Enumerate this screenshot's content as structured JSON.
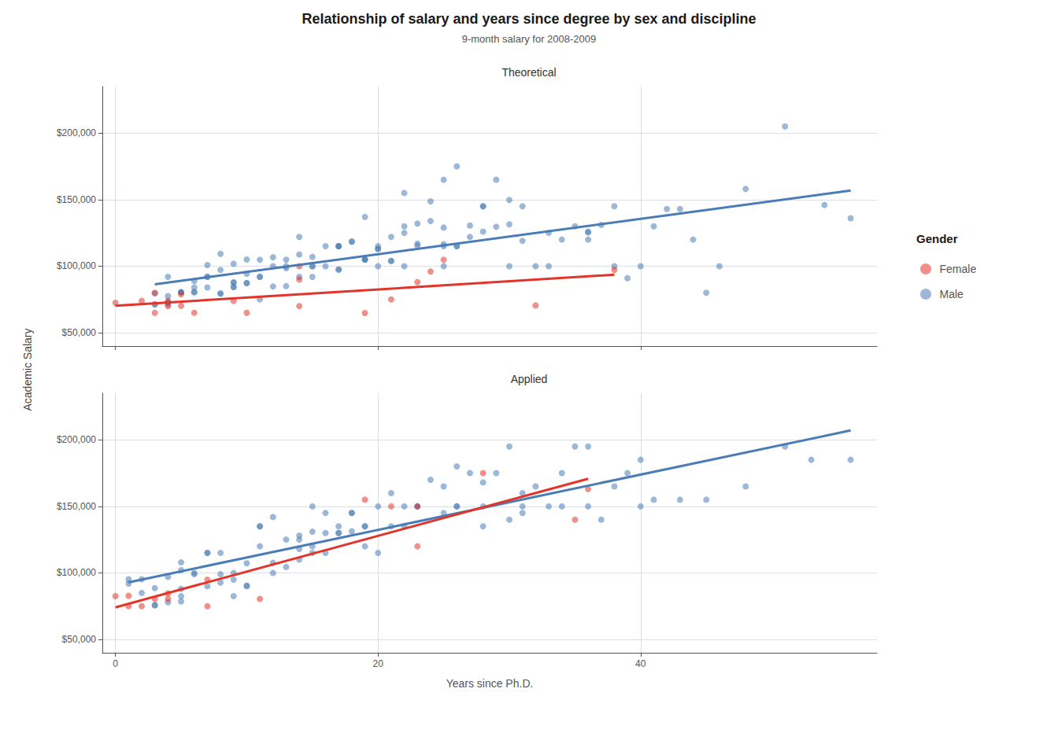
{
  "title": "Relationship of salary and years since degree by sex and discipline",
  "subtitle": "9-month salary for 2008-2009",
  "ylabel": "Academic Salary",
  "legend": "right",
  "annotations": [
    "Gender"
  ],
  "chart_data": [
    {
      "type": "scatter",
      "title": "Theoretical",
      "xlim": [
        -1,
        58
      ],
      "ylim": [
        40000,
        235000
      ],
      "xticks": [
        0,
        20,
        40
      ],
      "yticks": [
        {
          "value": 50000,
          "label": "$50,000"
        },
        {
          "value": 100000,
          "label": "$100,000"
        },
        {
          "value": 150000,
          "label": "$150,000"
        },
        {
          "value": 200000,
          "label": "$200,000"
        }
      ],
      "grid": true,
      "tick_labels": "y",
      "series": [
        {
          "name": "Male",
          "type": "scatter",
          "color": "#4A7DB5",
          "x": [
            3,
            3,
            3,
            4,
            4,
            4,
            4,
            4,
            5,
            5,
            5,
            6,
            6,
            6,
            6,
            7,
            7,
            7,
            7,
            8,
            8,
            8,
            8,
            9,
            9,
            9,
            9,
            9,
            10,
            10,
            10,
            10,
            11,
            11,
            11,
            11,
            12,
            12,
            12,
            13,
            13,
            13,
            13,
            14,
            14,
            14,
            15,
            15,
            15,
            15,
            16,
            16,
            17,
            17,
            17,
            17,
            17,
            18,
            18,
            19,
            19,
            19,
            19,
            20,
            20,
            20,
            20,
            21,
            21,
            21,
            22,
            22,
            22,
            22,
            23,
            23,
            23,
            24,
            24,
            25,
            25,
            25,
            25,
            25,
            26,
            26,
            26,
            27,
            27,
            28,
            28,
            28,
            29,
            29,
            30,
            30,
            30,
            31,
            31,
            32,
            33,
            33,
            34,
            35,
            36,
            36,
            36,
            37,
            38,
            38,
            39,
            40,
            41,
            42,
            43,
            44,
            45,
            46,
            48,
            51,
            54,
            56
          ],
          "values": [
            71292,
            79452,
            71292,
            92000,
            71292,
            77500,
            72704,
            72704,
            80424,
            80424,
            80424,
            83995,
            80523,
            80523,
            88825,
            100891,
            92000,
            92000,
            83995,
            109300,
            79453,
            79453,
            97200,
            87785,
            87785,
            84291,
            84291,
            101800,
            105000,
            87310,
            94350,
            87310,
            92000,
            92000,
            104800,
            75100,
            100000,
            106686,
            84700,
            100000,
            104800,
            98500,
            85000,
            108750,
            92000,
            122000,
            100000,
            100000,
            92000,
            107008,
            115000,
            100000,
            115000,
            97500,
            115000,
            115000,
            97500,
            118445,
            118445,
            137000,
            105000,
            105000,
            105000,
            113000,
            115000,
            100000,
            113000,
            104000,
            104000,
            122000,
            125000,
            100000,
            130000,
            155000,
            117000,
            115400,
            132000,
            134000,
            148750,
            115000,
            116500,
            100000,
            165000,
            129000,
            115000,
            115000,
            175000,
            122000,
            130600,
            145000,
            145000,
            126000,
            165000,
            129600,
            131450,
            100000,
            149800,
            119000,
            145000,
            100000,
            125000,
            100000,
            120000,
            130000,
            120000,
            126000,
            125400,
            131000,
            145000,
            100000,
            91000,
            100000,
            130000,
            143000,
            143000,
            120000,
            80000,
            100000,
            158000,
            205000,
            146000,
            136000
          ]
        },
        {
          "name": "Female",
          "type": "scatter",
          "color": "#E3342A",
          "x": [
            0,
            2,
            3,
            3,
            4,
            4,
            5,
            5,
            6,
            9,
            10,
            14,
            14,
            14,
            19,
            21,
            23,
            24,
            25,
            32,
            38
          ],
          "values": [
            72500,
            74000,
            80000,
            65000,
            70000,
            74000,
            70200,
            78785,
            65000,
            74000,
            65000,
            100000,
            90000,
            70000,
            64800,
            75000,
            88000,
            96000,
            104800,
            70500,
            97150
          ]
        },
        {
          "name": "Male",
          "type": "line",
          "color": "#4A7DB5",
          "x": [
            3,
            56
          ],
          "values": [
            86349.3,
            156827.6
          ]
        },
        {
          "name": "Female",
          "type": "line",
          "color": "#E3342A",
          "x": [
            0,
            38
          ],
          "values": [
            70299.3,
            93575.9
          ]
        }
      ]
    },
    {
      "type": "scatter",
      "title": "Applied",
      "xlabel": "Years since Ph.D.",
      "xlim": [
        -1,
        58
      ],
      "ylim": [
        40000,
        235000
      ],
      "xticks": [
        0,
        20,
        40
      ],
      "yticks": [
        {
          "value": 50000,
          "label": "$50,000"
        },
        {
          "value": 100000,
          "label": "$100,000"
        },
        {
          "value": 150000,
          "label": "$150,000"
        },
        {
          "value": 200000,
          "label": "$200,000"
        }
      ],
      "grid": true,
      "series": [
        {
          "name": "Male",
          "type": "scatter",
          "color": "#4A7DB5",
          "x": [
            1,
            1,
            2,
            2,
            3,
            3,
            3,
            4,
            4,
            5,
            5,
            5,
            5,
            5,
            6,
            6,
            7,
            7,
            7,
            8,
            8,
            8,
            9,
            9,
            9,
            10,
            10,
            10,
            11,
            11,
            11,
            12,
            12,
            12,
            13,
            13,
            14,
            14,
            14,
            14,
            15,
            15,
            15,
            15,
            16,
            16,
            16,
            17,
            17,
            17,
            18,
            18,
            18,
            19,
            19,
            19,
            20,
            20,
            21,
            21,
            22,
            22,
            23,
            23,
            24,
            25,
            25,
            26,
            26,
            26,
            27,
            28,
            28,
            28,
            29,
            30,
            30,
            31,
            31,
            31,
            32,
            33,
            34,
            34,
            35,
            36,
            36,
            37,
            38,
            39,
            40,
            40,
            41,
            43,
            45,
            48,
            51,
            53,
            56
          ],
          "values": [
            95262,
            92000,
            95262,
            85000,
            75800,
            88600,
            75800,
            97032,
            78000,
            78540,
            88000,
            82500,
            102000,
            108000,
            100000,
            99000,
            115000,
            90000,
            115000,
            99000,
            92700,
            115000,
            95000,
            100000,
            82500,
            90000,
            107200,
            90500,
            120000,
            135000,
            135000,
            142000,
            100000,
            107600,
            104500,
            125000,
            128000,
            110000,
            118000,
            125000,
            150000,
            115000,
            131025,
            120000,
            145000,
            130000,
            115000,
            130000,
            135000,
            130000,
            131250,
            145000,
            145000,
            135000,
            120000,
            135000,
            115000,
            150000,
            160000,
            135000,
            150000,
            135000,
            150000,
            150000,
            170000,
            145000,
            165000,
            150000,
            180000,
            150000,
            175000,
            135000,
            150000,
            168000,
            175000,
            195000,
            140000,
            160000,
            150000,
            145000,
            165000,
            150000,
            150000,
            175000,
            195000,
            195000,
            150000,
            140000,
            165000,
            175000,
            150000,
            185000,
            155000,
            155000,
            155000,
            165000,
            195000,
            185000,
            185000
          ]
        },
        {
          "name": "Female",
          "type": "scatter",
          "color": "#E3342A",
          "x": [
            0,
            1,
            1,
            2,
            3,
            4,
            4,
            7,
            7,
            11,
            19,
            21,
            23,
            23,
            28,
            35,
            36
          ],
          "values": [
            82500,
            75000,
            82800,
            75000,
            80525,
            84600,
            80525,
            95000,
            75000,
            80525,
            155000,
            150000,
            120000,
            150000,
            175000,
            140000,
            163000
          ]
        },
        {
          "name": "Male",
          "type": "line",
          "color": "#4A7DB5",
          "x": [
            1,
            56
          ],
          "values": [
            92913.8,
            207044.8
          ]
        },
        {
          "name": "Female",
          "type": "line",
          "color": "#E3342A",
          "x": [
            0,
            36
          ],
          "values": [
            74163.5,
            170754.7
          ]
        }
      ]
    }
  ]
}
